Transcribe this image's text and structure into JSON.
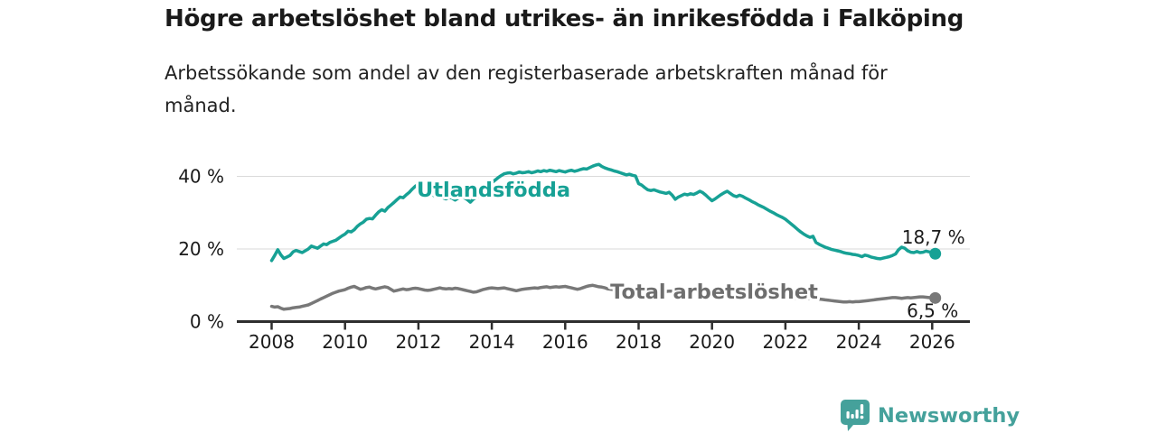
{
  "title": "Högre arbetslöshet bland utrikes- än inrikesfödda i Falköping",
  "subtitle": "Arbetssökande som andel av den registerbaserade arbetskraften månad för månad.",
  "branding": {
    "name": "Newsworthy",
    "logo_icon": "bar-chart-speech-bubble-icon",
    "color": "#45a19b"
  },
  "chart_data": {
    "type": "line",
    "title": "Högre arbetslöshet bland utrikes- än inrikesfödda i Falköping",
    "subtitle": "Arbetssökande som andel av den registerbaserade arbetskraften månad för månad.",
    "grid": "horizontal",
    "legend_position": "inline-labels-on-lines",
    "x_axis": {
      "ticks": [
        2008,
        2010,
        2012,
        2014,
        2016,
        2018,
        2020,
        2022,
        2024,
        2026
      ],
      "range": [
        2007.05,
        2027.05
      ]
    },
    "y_axis": {
      "ticks": [
        {
          "value": 0,
          "label": "0 %"
        },
        {
          "value": 20,
          "label": "20 %"
        },
        {
          "value": 40,
          "label": "40 %"
        }
      ],
      "range": [
        0,
        46
      ]
    },
    "start_year": 2008,
    "points_per_year": 12,
    "colors": {
      "utlandsfodda": "#17a195",
      "total": "#787878"
    },
    "series": [
      {
        "name": "Utlandsfödda",
        "color": "#17a195",
        "label_color": "#17a195",
        "end_label": "18,7 %",
        "end_value": 18.7,
        "values": [
          16.8,
          18.2,
          19.8,
          18.4,
          17.4,
          17.8,
          18.2,
          19.2,
          19.6,
          19.3,
          19.0,
          19.5,
          20.0,
          20.8,
          20.5,
          20.2,
          20.8,
          21.4,
          21.2,
          21.8,
          22.1,
          22.4,
          23.0,
          23.6,
          24.1,
          24.9,
          24.7,
          25.3,
          26.2,
          26.9,
          27.4,
          28.2,
          28.4,
          28.3,
          29.3,
          30.2,
          30.8,
          30.4,
          31.4,
          32.1,
          32.8,
          33.6,
          34.3,
          34.1,
          34.9,
          35.6,
          36.5,
          37.3,
          37.8,
          37.0,
          36.2,
          35.6,
          35.2,
          34.7,
          34.2,
          34.5,
          34.1,
          33.8,
          34.2,
          34.0,
          33.5,
          34.0,
          34.3,
          34.1,
          33.6,
          32.9,
          33.8,
          34.2,
          34.6,
          35.4,
          36.3,
          37.4,
          38.2,
          38.9,
          39.6,
          40.2,
          40.7,
          40.9,
          41.0,
          40.7,
          40.9,
          41.2,
          41.0,
          41.1,
          41.3,
          41.0,
          41.2,
          41.5,
          41.3,
          41.6,
          41.4,
          41.7,
          41.5,
          41.3,
          41.6,
          41.4,
          41.2,
          41.5,
          41.7,
          41.4,
          41.6,
          41.9,
          42.1,
          42.0,
          42.4,
          42.8,
          43.1,
          43.3,
          42.7,
          42.3,
          42.0,
          41.8,
          41.5,
          41.3,
          41.0,
          40.7,
          40.4,
          40.6,
          40.3,
          40.1,
          38.0,
          37.6,
          36.9,
          36.3,
          36.1,
          36.3,
          36.0,
          35.7,
          35.5,
          35.3,
          35.6,
          34.8,
          33.7,
          34.3,
          34.7,
          35.1,
          34.9,
          35.2,
          35.0,
          35.4,
          35.9,
          35.5,
          34.8,
          34.0,
          33.3,
          33.8,
          34.4,
          35.0,
          35.5,
          35.9,
          35.3,
          34.7,
          34.4,
          34.8,
          34.5,
          34.0,
          33.6,
          33.1,
          32.7,
          32.2,
          31.8,
          31.4,
          30.9,
          30.4,
          30.0,
          29.5,
          29.1,
          28.7,
          28.2,
          27.5,
          26.8,
          26.1,
          25.4,
          24.7,
          24.1,
          23.6,
          23.2,
          23.5,
          21.8,
          21.3,
          20.9,
          20.5,
          20.2,
          19.9,
          19.7,
          19.5,
          19.3,
          19.0,
          18.8,
          18.7,
          18.5,
          18.4,
          18.2,
          17.9,
          18.3,
          18.1,
          17.8,
          17.6,
          17.4,
          17.3,
          17.5,
          17.7,
          17.9,
          18.2,
          18.6,
          19.8,
          20.5,
          20.2,
          19.5,
          19.1,
          19.0,
          19.3,
          19.0,
          19.1,
          19.4,
          19.2,
          19.0,
          18.7
        ]
      },
      {
        "name": "Total arbetslöshet",
        "color": "#787878",
        "label_color": "#6e6e6e",
        "end_label": "6,5 %",
        "end_value": 6.5,
        "values": [
          4.2,
          4.0,
          4.1,
          3.7,
          3.4,
          3.5,
          3.6,
          3.8,
          3.9,
          4.0,
          4.2,
          4.4,
          4.6,
          5.0,
          5.4,
          5.8,
          6.2,
          6.6,
          7.0,
          7.4,
          7.8,
          8.1,
          8.4,
          8.6,
          8.8,
          9.2,
          9.5,
          9.7,
          9.3,
          8.9,
          9.1,
          9.4,
          9.5,
          9.2,
          9.0,
          9.2,
          9.4,
          9.6,
          9.4,
          8.9,
          8.4,
          8.6,
          8.8,
          9.0,
          8.8,
          8.9,
          9.1,
          9.2,
          9.1,
          8.9,
          8.7,
          8.6,
          8.7,
          8.9,
          9.1,
          9.3,
          9.1,
          9.0,
          9.1,
          9.0,
          9.2,
          9.1,
          8.9,
          8.7,
          8.5,
          8.3,
          8.1,
          8.2,
          8.5,
          8.8,
          9.0,
          9.2,
          9.3,
          9.2,
          9.1,
          9.2,
          9.3,
          9.1,
          8.9,
          8.7,
          8.5,
          8.7,
          8.9,
          9.0,
          9.1,
          9.2,
          9.3,
          9.2,
          9.4,
          9.5,
          9.6,
          9.4,
          9.5,
          9.6,
          9.5,
          9.6,
          9.7,
          9.5,
          9.3,
          9.1,
          8.9,
          9.1,
          9.4,
          9.7,
          9.9,
          10.0,
          9.8,
          9.6,
          9.5,
          9.3,
          9.0,
          8.9,
          8.8,
          8.7,
          8.8,
          8.7,
          8.6,
          8.6,
          8.5,
          8.5,
          8.6,
          8.5,
          8.4,
          8.4,
          8.3,
          8.3,
          8.4,
          8.3,
          8.2,
          8.3,
          8.4,
          8.4,
          8.3,
          8.4,
          8.5,
          8.4,
          8.5,
          8.6,
          8.5,
          8.6,
          8.7,
          8.6,
          8.7,
          8.8,
          8.9,
          9.0,
          9.2,
          9.4,
          9.3,
          9.2,
          9.0,
          8.9,
          8.8,
          8.6,
          8.4,
          8.2,
          8.0,
          7.8,
          7.6,
          7.4,
          7.2,
          7.1,
          7.0,
          6.9,
          6.8,
          6.7,
          6.6,
          6.6,
          6.6,
          6.5,
          6.5,
          6.4,
          6.5,
          6.4,
          6.4,
          6.3,
          6.4,
          6.3,
          6.2,
          6.2,
          6.1,
          6.0,
          5.9,
          5.8,
          5.7,
          5.6,
          5.5,
          5.4,
          5.4,
          5.5,
          5.4,
          5.5,
          5.5,
          5.6,
          5.7,
          5.8,
          5.9,
          6.0,
          6.1,
          6.2,
          6.3,
          6.4,
          6.5,
          6.6,
          6.6,
          6.5,
          6.4,
          6.5,
          6.6,
          6.5,
          6.6,
          6.7,
          6.8,
          6.8,
          6.7,
          6.6,
          6.6,
          6.5
        ]
      }
    ]
  }
}
